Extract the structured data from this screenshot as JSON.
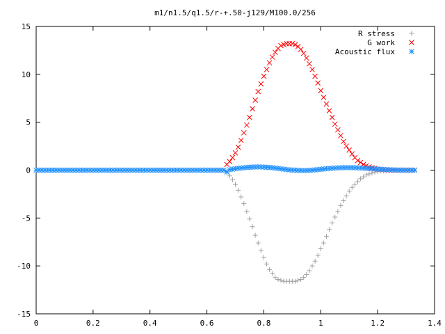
{
  "chart_data": {
    "type": "scatter",
    "title": "m1/n1.5/q1.5/r-+.50-j129/M100.0/256",
    "xlabel": "",
    "ylabel": "",
    "xlim": [
      0,
      1.4
    ],
    "ylim": [
      -15,
      15
    ],
    "xticks": [
      "0",
      "0.2",
      "0.4",
      "0.6",
      "0.8",
      "1",
      "1.2",
      "1.4"
    ],
    "yticks": [
      "15",
      "10",
      "5",
      "0",
      "-5",
      "-10",
      "-15"
    ],
    "grid": false,
    "legend_position": "top-right",
    "series": [
      {
        "name": "R stress",
        "marker": "plus",
        "color": "#a0a0a0",
        "x": [
          0.67,
          0.68,
          0.69,
          0.7,
          0.71,
          0.72,
          0.73,
          0.74,
          0.75,
          0.76,
          0.77,
          0.78,
          0.79,
          0.8,
          0.81,
          0.82,
          0.83,
          0.84,
          0.85,
          0.86,
          0.87,
          0.88,
          0.89,
          0.9,
          0.91,
          0.92,
          0.93,
          0.94,
          0.95,
          0.96,
          0.97,
          0.98,
          0.99,
          1.0,
          1.01,
          1.02,
          1.03,
          1.04,
          1.05,
          1.06,
          1.07,
          1.08,
          1.09,
          1.1,
          1.11,
          1.12,
          1.13,
          1.14,
          1.15,
          1.16,
          1.17,
          1.18,
          1.19,
          1.2,
          1.21,
          1.22,
          1.23,
          1.24,
          1.25,
          1.26,
          1.27,
          1.28,
          1.29,
          1.3,
          1.31,
          1.32,
          1.33
        ],
        "y": [
          -0.2,
          -0.6,
          -1.0,
          -1.5,
          -2.1,
          -2.8,
          -3.5,
          -4.3,
          -5.1,
          -5.9,
          -6.8,
          -7.6,
          -8.4,
          -9.1,
          -9.8,
          -10.4,
          -10.8,
          -11.2,
          -11.4,
          -11.5,
          -11.6,
          -11.6,
          -11.6,
          -11.6,
          -11.6,
          -11.5,
          -11.4,
          -11.2,
          -10.9,
          -10.5,
          -10.0,
          -9.5,
          -8.9,
          -8.2,
          -7.6,
          -6.9,
          -6.2,
          -5.5,
          -4.9,
          -4.3,
          -3.7,
          -3.2,
          -2.7,
          -2.2,
          -1.8,
          -1.5,
          -1.2,
          -0.9,
          -0.7,
          -0.5,
          -0.4,
          -0.3,
          -0.2,
          -0.15,
          -0.1,
          -0.07,
          -0.05,
          -0.03,
          -0.02,
          -0.01,
          0,
          0,
          0,
          0,
          0,
          0,
          0
        ]
      },
      {
        "name": "G work",
        "marker": "cross",
        "color": "#ff0000",
        "x": [
          0.67,
          0.68,
          0.69,
          0.7,
          0.71,
          0.72,
          0.73,
          0.74,
          0.75,
          0.76,
          0.77,
          0.78,
          0.79,
          0.8,
          0.81,
          0.82,
          0.83,
          0.84,
          0.85,
          0.86,
          0.87,
          0.88,
          0.89,
          0.9,
          0.91,
          0.92,
          0.93,
          0.94,
          0.95,
          0.96,
          0.97,
          0.98,
          0.99,
          1.0,
          1.01,
          1.02,
          1.03,
          1.04,
          1.05,
          1.06,
          1.07,
          1.08,
          1.09,
          1.1,
          1.11,
          1.12,
          1.13,
          1.14,
          1.15,
          1.16,
          1.17,
          1.18,
          1.19,
          1.2,
          1.21,
          1.22,
          1.23,
          1.24,
          1.25,
          1.26,
          1.27,
          1.28,
          1.29,
          1.3,
          1.31,
          1.32,
          1.33
        ],
        "y": [
          0.6,
          0.9,
          1.3,
          1.8,
          2.4,
          3.1,
          3.9,
          4.7,
          5.5,
          6.4,
          7.3,
          8.2,
          9.0,
          9.8,
          10.5,
          11.2,
          11.8,
          12.3,
          12.7,
          13.0,
          13.1,
          13.2,
          13.2,
          13.2,
          13.1,
          12.9,
          12.6,
          12.2,
          11.7,
          11.1,
          10.5,
          9.8,
          9.1,
          8.3,
          7.6,
          6.9,
          6.2,
          5.5,
          4.8,
          4.2,
          3.6,
          3.0,
          2.5,
          2.1,
          1.7,
          1.3,
          1.0,
          0.8,
          0.6,
          0.45,
          0.35,
          0.25,
          0.18,
          0.12,
          0.08,
          0.05,
          0.03,
          0.02,
          0.01,
          0,
          0,
          0,
          0,
          0,
          0,
          0,
          0
        ]
      },
      {
        "name": "Acoustic flux",
        "marker": "star",
        "color": "#1e90ff",
        "x": [
          0,
          0.01,
          0.02,
          0.03,
          0.04,
          0.05,
          0.06,
          0.07,
          0.08,
          0.09,
          0.1,
          0.11,
          0.12,
          0.13,
          0.14,
          0.15,
          0.16,
          0.17,
          0.18,
          0.19,
          0.2,
          0.21,
          0.22,
          0.23,
          0.24,
          0.25,
          0.26,
          0.27,
          0.28,
          0.29,
          0.3,
          0.31,
          0.32,
          0.33,
          0.34,
          0.35,
          0.36,
          0.37,
          0.38,
          0.39,
          0.4,
          0.41,
          0.42,
          0.43,
          0.44,
          0.45,
          0.46,
          0.47,
          0.48,
          0.49,
          0.5,
          0.51,
          0.52,
          0.53,
          0.54,
          0.55,
          0.56,
          0.57,
          0.58,
          0.59,
          0.6,
          0.61,
          0.62,
          0.63,
          0.64,
          0.65,
          0.66,
          0.67,
          0.68,
          0.69,
          0.7,
          0.71,
          0.72,
          0.73,
          0.74,
          0.75,
          0.76,
          0.77,
          0.78,
          0.79,
          0.8,
          0.81,
          0.82,
          0.83,
          0.84,
          0.85,
          0.86,
          0.87,
          0.88,
          0.89,
          0.9,
          0.91,
          0.92,
          0.93,
          0.94,
          0.95,
          0.96,
          0.97,
          0.98,
          0.99,
          1.0,
          1.01,
          1.02,
          1.03,
          1.04,
          1.05,
          1.06,
          1.07,
          1.08,
          1.09,
          1.1,
          1.11,
          1.12,
          1.13,
          1.14,
          1.15,
          1.16,
          1.17,
          1.18,
          1.19,
          1.2,
          1.21,
          1.22,
          1.23,
          1.24,
          1.25,
          1.26,
          1.27,
          1.28,
          1.29,
          1.3,
          1.31,
          1.32,
          1.33
        ],
        "y": [
          0,
          0,
          0,
          0,
          0,
          0,
          0,
          0,
          0,
          0,
          0,
          0,
          0,
          0,
          0,
          0,
          0,
          0,
          0,
          0,
          0,
          0,
          0,
          0,
          0,
          0,
          0,
          0,
          0,
          0,
          0,
          0,
          0,
          0,
          0,
          0,
          0,
          0,
          0,
          0,
          0,
          0,
          0,
          0,
          0,
          0,
          0,
          0,
          0,
          0,
          0,
          0,
          0,
          0,
          0,
          0,
          0,
          0,
          0,
          0,
          0,
          0,
          0,
          0,
          0,
          0,
          0,
          -0.2,
          0.05,
          0.1,
          0.15,
          0.2,
          0.22,
          0.25,
          0.28,
          0.3,
          0.32,
          0.33,
          0.34,
          0.33,
          0.32,
          0.3,
          0.28,
          0.25,
          0.22,
          0.18,
          0.14,
          0.1,
          0.06,
          0.03,
          0.01,
          0,
          -0.02,
          -0.03,
          -0.04,
          -0.03,
          -0.02,
          0,
          0.03,
          0.06,
          0.09,
          0.12,
          0.15,
          0.18,
          0.2,
          0.22,
          0.24,
          0.25,
          0.26,
          0.26,
          0.26,
          0.26,
          0.25,
          0.24,
          0.23,
          0.21,
          0.19,
          0.17,
          0.15,
          0.13,
          0.11,
          0.09,
          0.07,
          0.05,
          0.04,
          0.03,
          0.02,
          0.01,
          0.01,
          0,
          0,
          0,
          0,
          0
        ]
      }
    ]
  }
}
